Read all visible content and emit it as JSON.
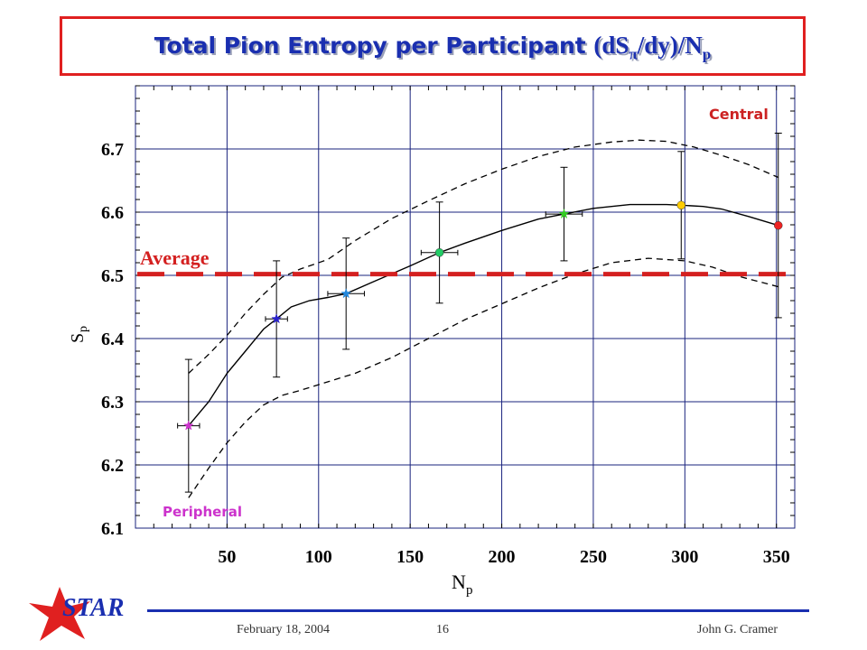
{
  "title": {
    "main": "Total Pion Entropy per Participant",
    "formula_open": "(dS",
    "formula_sub1": "π",
    "formula_mid": "/dy)/N",
    "formula_sub2": "p"
  },
  "chart_data": {
    "type": "scatter",
    "xlabel": "N",
    "xlabel_sub": "p",
    "ylabel": "S",
    "ylabel_sub": "p",
    "xlim": [
      0,
      360
    ],
    "ylim": [
      6.1,
      6.8
    ],
    "x_ticks": [
      50,
      100,
      150,
      200,
      250,
      300,
      350
    ],
    "y_ticks": [
      6.1,
      6.2,
      6.3,
      6.4,
      6.5,
      6.6,
      6.7
    ],
    "grid": true,
    "points": [
      {
        "x": 29,
        "y": 6.262,
        "yerr": 0.105,
        "xerr": 6,
        "color": "#cc33cc",
        "marker": "star"
      },
      {
        "x": 77,
        "y": 6.431,
        "yerr": 0.092,
        "xerr": 6,
        "color": "#2a22cc",
        "marker": "star"
      },
      {
        "x": 115,
        "y": 6.471,
        "yerr": 0.088,
        "xerr": 10,
        "color": "#2288dd",
        "marker": "star"
      },
      {
        "x": 166,
        "y": 6.536,
        "yerr": 0.08,
        "xerr": 10,
        "color": "#22cc66",
        "marker": "circle"
      },
      {
        "x": 234,
        "y": 6.597,
        "yerr": 0.074,
        "xerr": 10,
        "color": "#33cc22",
        "marker": "star"
      },
      {
        "x": 298,
        "y": 6.611,
        "yerr": 0.085,
        "xerr": 0,
        "color": "#ffcc00",
        "marker": "circle"
      },
      {
        "x": 351,
        "y": 6.579,
        "yerr": 0.146,
        "xerr": 0,
        "color": "#ee2222",
        "marker": "circle"
      }
    ],
    "fit_curve": [
      [
        29,
        6.262
      ],
      [
        40,
        6.3
      ],
      [
        50,
        6.345
      ],
      [
        60,
        6.38
      ],
      [
        70,
        6.415
      ],
      [
        77,
        6.431
      ],
      [
        85,
        6.45
      ],
      [
        95,
        6.46
      ],
      [
        105,
        6.465
      ],
      [
        115,
        6.471
      ],
      [
        130,
        6.49
      ],
      [
        150,
        6.515
      ],
      [
        166,
        6.536
      ],
      [
        180,
        6.551
      ],
      [
        200,
        6.571
      ],
      [
        220,
        6.589
      ],
      [
        234,
        6.597
      ],
      [
        250,
        6.606
      ],
      [
        270,
        6.612
      ],
      [
        290,
        6.612
      ],
      [
        298,
        6.611
      ],
      [
        310,
        6.609
      ],
      [
        320,
        6.605
      ],
      [
        335,
        6.593
      ],
      [
        351,
        6.579
      ]
    ],
    "upper_band": [
      [
        29,
        6.345
      ],
      [
        40,
        6.375
      ],
      [
        50,
        6.405
      ],
      [
        60,
        6.44
      ],
      [
        70,
        6.47
      ],
      [
        80,
        6.497
      ],
      [
        90,
        6.51
      ],
      [
        105,
        6.525
      ],
      [
        120,
        6.555
      ],
      [
        140,
        6.59
      ],
      [
        160,
        6.618
      ],
      [
        180,
        6.645
      ],
      [
        200,
        6.668
      ],
      [
        220,
        6.688
      ],
      [
        240,
        6.703
      ],
      [
        260,
        6.711
      ],
      [
        275,
        6.714
      ],
      [
        290,
        6.712
      ],
      [
        305,
        6.703
      ],
      [
        320,
        6.69
      ],
      [
        335,
        6.675
      ],
      [
        351,
        6.655
      ]
    ],
    "lower_band": [
      [
        29,
        6.148
      ],
      [
        40,
        6.195
      ],
      [
        50,
        6.235
      ],
      [
        60,
        6.268
      ],
      [
        70,
        6.295
      ],
      [
        80,
        6.31
      ],
      [
        90,
        6.318
      ],
      [
        100,
        6.327
      ],
      [
        120,
        6.345
      ],
      [
        140,
        6.37
      ],
      [
        160,
        6.4
      ],
      [
        180,
        6.43
      ],
      [
        200,
        6.455
      ],
      [
        220,
        6.48
      ],
      [
        240,
        6.502
      ],
      [
        260,
        6.52
      ],
      [
        280,
        6.527
      ],
      [
        300,
        6.523
      ],
      [
        315,
        6.513
      ],
      [
        330,
        6.498
      ],
      [
        351,
        6.482
      ]
    ],
    "average_line": 6.502,
    "annotations": {
      "average": "Average",
      "central": "Central",
      "peripheral": "Peripheral"
    }
  },
  "footer": {
    "logo": "STAR",
    "date": "February 18, 2004",
    "page": "16",
    "author": "John G. Cramer"
  },
  "colors": {
    "title_blue": "#1a2fb0",
    "frame_red": "#e02020",
    "grid_blue": "#1a237e",
    "average_red": "#d42020",
    "central_red": "#cc2222",
    "peripheral_magenta": "#cc33cc"
  }
}
